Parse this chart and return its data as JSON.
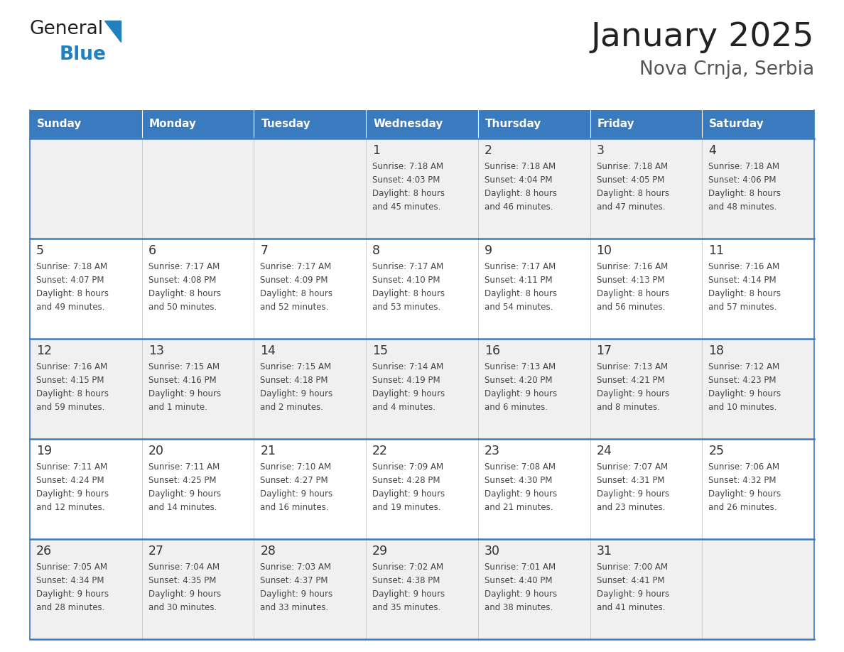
{
  "title": "January 2025",
  "subtitle": "Nova Crnja, Serbia",
  "days_of_week": [
    "Sunday",
    "Monday",
    "Tuesday",
    "Wednesday",
    "Thursday",
    "Friday",
    "Saturday"
  ],
  "header_bg": "#3a7abf",
  "header_text": "#ffffff",
  "row_bg_even": "#f0f0f0",
  "row_bg_odd": "#ffffff",
  "day_number_color": "#333333",
  "info_text_color": "#444444",
  "border_color": "#3a7abf",
  "title_color": "#222222",
  "subtitle_color": "#555555",
  "logo_general_color": "#222222",
  "logo_blue_color": "#2080c0",
  "calendar_data": [
    [
      {
        "day": null,
        "info": ""
      },
      {
        "day": null,
        "info": ""
      },
      {
        "day": null,
        "info": ""
      },
      {
        "day": 1,
        "info": "Sunrise: 7:18 AM\nSunset: 4:03 PM\nDaylight: 8 hours\nand 45 minutes."
      },
      {
        "day": 2,
        "info": "Sunrise: 7:18 AM\nSunset: 4:04 PM\nDaylight: 8 hours\nand 46 minutes."
      },
      {
        "day": 3,
        "info": "Sunrise: 7:18 AM\nSunset: 4:05 PM\nDaylight: 8 hours\nand 47 minutes."
      },
      {
        "day": 4,
        "info": "Sunrise: 7:18 AM\nSunset: 4:06 PM\nDaylight: 8 hours\nand 48 minutes."
      }
    ],
    [
      {
        "day": 5,
        "info": "Sunrise: 7:18 AM\nSunset: 4:07 PM\nDaylight: 8 hours\nand 49 minutes."
      },
      {
        "day": 6,
        "info": "Sunrise: 7:17 AM\nSunset: 4:08 PM\nDaylight: 8 hours\nand 50 minutes."
      },
      {
        "day": 7,
        "info": "Sunrise: 7:17 AM\nSunset: 4:09 PM\nDaylight: 8 hours\nand 52 minutes."
      },
      {
        "day": 8,
        "info": "Sunrise: 7:17 AM\nSunset: 4:10 PM\nDaylight: 8 hours\nand 53 minutes."
      },
      {
        "day": 9,
        "info": "Sunrise: 7:17 AM\nSunset: 4:11 PM\nDaylight: 8 hours\nand 54 minutes."
      },
      {
        "day": 10,
        "info": "Sunrise: 7:16 AM\nSunset: 4:13 PM\nDaylight: 8 hours\nand 56 minutes."
      },
      {
        "day": 11,
        "info": "Sunrise: 7:16 AM\nSunset: 4:14 PM\nDaylight: 8 hours\nand 57 minutes."
      }
    ],
    [
      {
        "day": 12,
        "info": "Sunrise: 7:16 AM\nSunset: 4:15 PM\nDaylight: 8 hours\nand 59 minutes."
      },
      {
        "day": 13,
        "info": "Sunrise: 7:15 AM\nSunset: 4:16 PM\nDaylight: 9 hours\nand 1 minute."
      },
      {
        "day": 14,
        "info": "Sunrise: 7:15 AM\nSunset: 4:18 PM\nDaylight: 9 hours\nand 2 minutes."
      },
      {
        "day": 15,
        "info": "Sunrise: 7:14 AM\nSunset: 4:19 PM\nDaylight: 9 hours\nand 4 minutes."
      },
      {
        "day": 16,
        "info": "Sunrise: 7:13 AM\nSunset: 4:20 PM\nDaylight: 9 hours\nand 6 minutes."
      },
      {
        "day": 17,
        "info": "Sunrise: 7:13 AM\nSunset: 4:21 PM\nDaylight: 9 hours\nand 8 minutes."
      },
      {
        "day": 18,
        "info": "Sunrise: 7:12 AM\nSunset: 4:23 PM\nDaylight: 9 hours\nand 10 minutes."
      }
    ],
    [
      {
        "day": 19,
        "info": "Sunrise: 7:11 AM\nSunset: 4:24 PM\nDaylight: 9 hours\nand 12 minutes."
      },
      {
        "day": 20,
        "info": "Sunrise: 7:11 AM\nSunset: 4:25 PM\nDaylight: 9 hours\nand 14 minutes."
      },
      {
        "day": 21,
        "info": "Sunrise: 7:10 AM\nSunset: 4:27 PM\nDaylight: 9 hours\nand 16 minutes."
      },
      {
        "day": 22,
        "info": "Sunrise: 7:09 AM\nSunset: 4:28 PM\nDaylight: 9 hours\nand 19 minutes."
      },
      {
        "day": 23,
        "info": "Sunrise: 7:08 AM\nSunset: 4:30 PM\nDaylight: 9 hours\nand 21 minutes."
      },
      {
        "day": 24,
        "info": "Sunrise: 7:07 AM\nSunset: 4:31 PM\nDaylight: 9 hours\nand 23 minutes."
      },
      {
        "day": 25,
        "info": "Sunrise: 7:06 AM\nSunset: 4:32 PM\nDaylight: 9 hours\nand 26 minutes."
      }
    ],
    [
      {
        "day": 26,
        "info": "Sunrise: 7:05 AM\nSunset: 4:34 PM\nDaylight: 9 hours\nand 28 minutes."
      },
      {
        "day": 27,
        "info": "Sunrise: 7:04 AM\nSunset: 4:35 PM\nDaylight: 9 hours\nand 30 minutes."
      },
      {
        "day": 28,
        "info": "Sunrise: 7:03 AM\nSunset: 4:37 PM\nDaylight: 9 hours\nand 33 minutes."
      },
      {
        "day": 29,
        "info": "Sunrise: 7:02 AM\nSunset: 4:38 PM\nDaylight: 9 hours\nand 35 minutes."
      },
      {
        "day": 30,
        "info": "Sunrise: 7:01 AM\nSunset: 4:40 PM\nDaylight: 9 hours\nand 38 minutes."
      },
      {
        "day": 31,
        "info": "Sunrise: 7:00 AM\nSunset: 4:41 PM\nDaylight: 9 hours\nand 41 minutes."
      },
      {
        "day": null,
        "info": ""
      }
    ]
  ]
}
